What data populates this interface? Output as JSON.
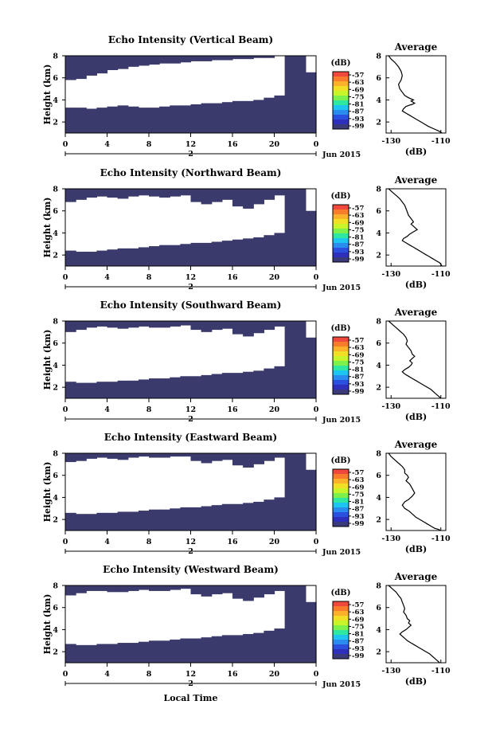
{
  "figure": {
    "bottom_xlabel": "Local Time",
    "colorbar": {
      "unit": "(dB)",
      "labels": [
        "-57",
        "-63",
        "-69",
        "-75",
        "-81",
        "-87",
        "-93",
        "-99"
      ],
      "colors": [
        "#f0483c",
        "#f97b2c",
        "#fbb12a",
        "#f1df26",
        "#c8f42a",
        "#7cf04b",
        "#2ee8a2",
        "#1cc6f0",
        "#2b8cf0",
        "#2b50e0",
        "#2f2fbe",
        "#3a3a7a"
      ]
    },
    "colors": {
      "fill": "#3a3a6c",
      "background": "#ffffff"
    }
  },
  "chart_data": [
    {
      "type": "heatmap",
      "title": "Echo Intensity (Vertical Beam)",
      "ylabel": "Height (km)",
      "xticks": [
        "0",
        "4",
        "8",
        "12",
        "16",
        "20",
        "0"
      ],
      "xlim": [
        0,
        24
      ],
      "ylim": [
        1,
        8
      ],
      "yticks": [
        "2",
        "4",
        "6",
        "8"
      ],
      "date_marker": "2",
      "date_label": "Jun 2015",
      "low_echo_top_km": [
        3.3,
        3.3,
        3.2,
        3.3,
        3.4,
        3.5,
        3.4,
        3.3,
        3.3,
        3.4,
        3.5,
        3.5,
        3.6,
        3.7,
        3.7,
        3.8,
        3.9,
        3.9,
        4.0,
        4.2,
        4.4,
        8.0,
        8.0,
        6.5
      ],
      "upper_echo_bottom_km": [
        5.8,
        5.9,
        6.2,
        6.4,
        6.7,
        6.8,
        7.0,
        7.1,
        7.2,
        7.3,
        7.3,
        7.4,
        7.5,
        7.5,
        7.6,
        7.6,
        7.7,
        7.7,
        7.8,
        7.8,
        8.0,
        8.0,
        8.0,
        8.0
      ]
    },
    {
      "type": "line",
      "title": "Average",
      "xlabel": "(dB)",
      "xticks": [
        "-130",
        "-110"
      ],
      "xlim": [
        -132,
        -108
      ],
      "ylim": [
        1,
        8
      ],
      "yticks": [
        "2",
        "4",
        "6",
        "8"
      ],
      "x": [
        -131.0,
        -130.0,
        -128.5,
        -127.0,
        -126.0,
        -125.5,
        -126.0,
        -127.0,
        -126.5,
        -125.5,
        -124.5,
        -123.0,
        -121.0,
        -122.0,
        -120.5,
        -121.5,
        -123.0,
        -124.0,
        -125.0,
        -125.5,
        -124.0,
        -122.5,
        -121.0,
        -119.5,
        -118.0,
        -116.5,
        -115.0,
        -113.0,
        -111.0,
        -109.5
      ],
      "y": [
        8.0,
        7.7,
        7.4,
        7.0,
        6.6,
        6.2,
        5.8,
        5.4,
        5.0,
        4.7,
        4.4,
        4.2,
        4.0,
        3.9,
        3.7,
        3.6,
        3.5,
        3.4,
        3.2,
        3.0,
        2.8,
        2.6,
        2.4,
        2.2,
        2.0,
        1.8,
        1.6,
        1.4,
        1.2,
        1.0
      ]
    },
    {
      "type": "heatmap",
      "title": "Echo Intensity (Northward Beam)",
      "ylabel": "Height (km)",
      "xticks": [
        "0",
        "4",
        "8",
        "12",
        "16",
        "20",
        "0"
      ],
      "xlim": [
        0,
        24
      ],
      "ylim": [
        1,
        8
      ],
      "yticks": [
        "2",
        "4",
        "6",
        "8"
      ],
      "date_marker": "2",
      "date_label": "Jun 2015",
      "low_echo_top_km": [
        2.4,
        2.3,
        2.3,
        2.4,
        2.5,
        2.6,
        2.6,
        2.7,
        2.8,
        2.9,
        2.9,
        3.0,
        3.1,
        3.1,
        3.2,
        3.3,
        3.4,
        3.5,
        3.6,
        3.8,
        4.0,
        8.0,
        8.0,
        6.0
      ],
      "upper_echo_bottom_km": [
        6.8,
        7.0,
        7.2,
        7.3,
        7.2,
        7.1,
        7.3,
        7.4,
        7.3,
        7.2,
        7.3,
        7.4,
        6.8,
        6.6,
        6.8,
        7.0,
        6.4,
        6.2,
        6.6,
        7.0,
        7.4,
        8.0,
        8.0,
        8.0
      ]
    },
    {
      "type": "line",
      "title": "Average",
      "xlabel": "(dB)",
      "xticks": [
        "-130",
        "-110"
      ],
      "xlim": [
        -132,
        -108
      ],
      "ylim": [
        1,
        8
      ],
      "yticks": [
        "2",
        "4",
        "6",
        "8"
      ],
      "x": [
        -131.0,
        -129.5,
        -128.0,
        -126.5,
        -125.5,
        -124.5,
        -124.0,
        -123.5,
        -123.0,
        -122.0,
        -121.0,
        -122.0,
        -121.0,
        -119.5,
        -121.0,
        -122.5,
        -123.5,
        -125.0,
        -125.5,
        -124.0,
        -122.5,
        -121.0,
        -119.5,
        -118.0,
        -116.5,
        -115.0,
        -113.5,
        -112.0,
        -110.5,
        -109.5
      ],
      "y": [
        8.0,
        7.7,
        7.4,
        7.1,
        6.8,
        6.5,
        6.2,
        5.9,
        5.6,
        5.3,
        5.0,
        4.8,
        4.6,
        4.3,
        4.1,
        3.9,
        3.7,
        3.5,
        3.3,
        3.1,
        2.9,
        2.7,
        2.5,
        2.3,
        2.1,
        1.9,
        1.7,
        1.5,
        1.3,
        1.0
      ]
    },
    {
      "type": "heatmap",
      "title": "Echo Intensity (Southward Beam)",
      "ylabel": "Height (km)",
      "xticks": [
        "0",
        "4",
        "8",
        "12",
        "16",
        "20",
        "0"
      ],
      "xlim": [
        0,
        24
      ],
      "ylim": [
        1,
        8
      ],
      "yticks": [
        "2",
        "4",
        "6",
        "8"
      ],
      "date_marker": "2",
      "date_label": "Jun 2015",
      "low_echo_top_km": [
        2.5,
        2.4,
        2.4,
        2.5,
        2.5,
        2.6,
        2.6,
        2.7,
        2.8,
        2.8,
        2.9,
        3.0,
        3.0,
        3.1,
        3.2,
        3.3,
        3.3,
        3.4,
        3.5,
        3.7,
        3.9,
        8.0,
        8.0,
        6.5
      ],
      "upper_echo_bottom_km": [
        7.0,
        7.2,
        7.4,
        7.5,
        7.4,
        7.3,
        7.4,
        7.5,
        7.4,
        7.4,
        7.5,
        7.6,
        7.2,
        7.0,
        7.2,
        7.3,
        6.8,
        6.6,
        6.9,
        7.2,
        7.5,
        8.0,
        8.0,
        8.0
      ]
    },
    {
      "type": "line",
      "title": "Average",
      "xlabel": "(dB)",
      "xticks": [
        "-130",
        "-110"
      ],
      "xlim": [
        -132,
        -108
      ],
      "ylim": [
        1,
        8
      ],
      "yticks": [
        "2",
        "4",
        "6",
        "8"
      ],
      "x": [
        -131.0,
        -129.5,
        -128.0,
        -126.5,
        -125.0,
        -124.0,
        -123.5,
        -124.0,
        -123.0,
        -122.0,
        -121.5,
        -120.5,
        -121.5,
        -122.5,
        -121.5,
        -122.0,
        -123.0,
        -124.5,
        -125.5,
        -124.5,
        -123.0,
        -121.5,
        -120.0,
        -118.5,
        -117.0,
        -115.5,
        -114.0,
        -112.5,
        -111.0,
        -110.0
      ],
      "y": [
        8.0,
        7.7,
        7.4,
        7.1,
        6.8,
        6.5,
        6.2,
        5.9,
        5.6,
        5.3,
        5.0,
        4.8,
        4.6,
        4.4,
        4.2,
        4.0,
        3.8,
        3.6,
        3.4,
        3.2,
        3.0,
        2.8,
        2.6,
        2.4,
        2.2,
        2.0,
        1.8,
        1.5,
        1.2,
        1.0
      ]
    },
    {
      "type": "heatmap",
      "title": "Echo Intensity (Eastward Beam)",
      "ylabel": "Height (km)",
      "xticks": [
        "0",
        "4",
        "8",
        "12",
        "16",
        "20",
        "0"
      ],
      "xlim": [
        0,
        24
      ],
      "ylim": [
        1,
        8
      ],
      "yticks": [
        "2",
        "4",
        "6",
        "8"
      ],
      "date_marker": "2",
      "date_label": "Jun 2015",
      "low_echo_top_km": [
        2.6,
        2.5,
        2.5,
        2.6,
        2.6,
        2.7,
        2.7,
        2.8,
        2.9,
        2.9,
        3.0,
        3.1,
        3.1,
        3.2,
        3.3,
        3.4,
        3.4,
        3.5,
        3.6,
        3.8,
        4.0,
        8.0,
        8.0,
        6.5
      ],
      "upper_echo_bottom_km": [
        7.2,
        7.3,
        7.5,
        7.6,
        7.5,
        7.4,
        7.6,
        7.7,
        7.6,
        7.6,
        7.7,
        7.7,
        7.3,
        7.1,
        7.3,
        7.4,
        6.9,
        6.7,
        7.0,
        7.3,
        7.6,
        8.0,
        8.0,
        8.0
      ]
    },
    {
      "type": "line",
      "title": "Average",
      "xlabel": "(dB)",
      "xticks": [
        "-130",
        "-110"
      ],
      "xlim": [
        -132,
        -108
      ],
      "ylim": [
        1,
        8
      ],
      "yticks": [
        "2",
        "4",
        "6",
        "8"
      ],
      "x": [
        -131.0,
        -130.0,
        -128.5,
        -127.0,
        -125.5,
        -124.5,
        -124.5,
        -123.5,
        -123.0,
        -124.0,
        -122.5,
        -121.5,
        -120.5,
        -121.5,
        -123.0,
        -124.5,
        -125.5,
        -124.5,
        -123.0,
        -122.0,
        -121.0,
        -120.0,
        -118.5,
        -117.0,
        -115.5,
        -114.0,
        -112.5,
        -111.0,
        -110.0
      ],
      "y": [
        8.0,
        7.7,
        7.4,
        7.1,
        6.8,
        6.5,
        6.2,
        6.0,
        5.8,
        5.5,
        5.2,
        4.8,
        4.4,
        4.1,
        3.8,
        3.6,
        3.3,
        3.0,
        2.8,
        2.6,
        2.4,
        2.2,
        2.0,
        1.8,
        1.6,
        1.4,
        1.2,
        1.1,
        1.0
      ]
    },
    {
      "type": "heatmap",
      "title": "Echo Intensity (Westward Beam)",
      "ylabel": "Height (km)",
      "xticks": [
        "0",
        "4",
        "8",
        "12",
        "16",
        "20",
        "0"
      ],
      "xlim": [
        0,
        24
      ],
      "ylim": [
        1,
        8
      ],
      "yticks": [
        "2",
        "4",
        "6",
        "8"
      ],
      "date_marker": "2",
      "date_label": "Jun 2015",
      "low_echo_top_km": [
        2.7,
        2.6,
        2.6,
        2.7,
        2.7,
        2.8,
        2.8,
        2.9,
        3.0,
        3.0,
        3.1,
        3.2,
        3.2,
        3.3,
        3.4,
        3.5,
        3.5,
        3.6,
        3.7,
        3.9,
        4.1,
        8.0,
        8.0,
        6.5
      ],
      "upper_echo_bottom_km": [
        7.1,
        7.3,
        7.5,
        7.5,
        7.4,
        7.4,
        7.5,
        7.6,
        7.5,
        7.5,
        7.6,
        7.7,
        7.2,
        7.0,
        7.2,
        7.3,
        6.8,
        6.6,
        6.9,
        7.2,
        7.5,
        8.0,
        8.0,
        8.0
      ]
    },
    {
      "type": "line",
      "title": "Average",
      "xlabel": "(dB)",
      "xticks": [
        "-130",
        "-110"
      ],
      "xlim": [
        -132,
        -108
      ],
      "ylim": [
        1,
        8
      ],
      "yticks": [
        "2",
        "4",
        "6",
        "8"
      ],
      "x": [
        -131.0,
        -129.5,
        -128.0,
        -127.0,
        -126.0,
        -125.5,
        -125.0,
        -124.5,
        -125.0,
        -124.0,
        -123.5,
        -122.5,
        -123.0,
        -122.0,
        -123.0,
        -124.0,
        -125.5,
        -126.5,
        -125.0,
        -123.5,
        -122.0,
        -120.5,
        -119.0,
        -117.5,
        -116.0,
        -114.5,
        -113.0,
        -111.5,
        -110.5
      ],
      "y": [
        8.0,
        7.7,
        7.4,
        7.1,
        6.8,
        6.5,
        6.2,
        5.9,
        5.6,
        5.3,
        5.0,
        4.8,
        4.6,
        4.4,
        4.2,
        4.0,
        3.8,
        3.6,
        3.3,
        3.0,
        2.8,
        2.6,
        2.4,
        2.2,
        2.0,
        1.8,
        1.5,
        1.2,
        1.0
      ]
    }
  ]
}
